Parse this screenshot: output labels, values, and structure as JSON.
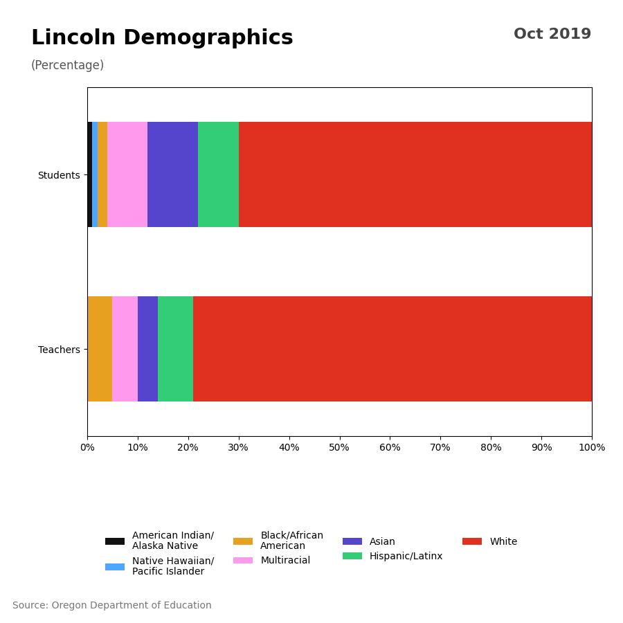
{
  "chart_data": {
    "type": "bar",
    "orientation": "horizontal",
    "stacked": true,
    "title": "Lincoln Demographics",
    "subtitle": "(Percentage)",
    "annotations": [
      "Oct 2019",
      "Source: Oregon Department of Education"
    ],
    "categories": [
      "Students",
      "Teachers"
    ],
    "series": [
      {
        "name": "American Indian/\nAlaska Native",
        "color": "#111111",
        "values": [
          1.0,
          0.0
        ]
      },
      {
        "name": "Native Hawaiian/\nPacific Islander",
        "color": "#4da6ff",
        "values": [
          1.0,
          0.0
        ]
      },
      {
        "name": "Black/African\nAmerican",
        "color": "#e8a020",
        "values": [
          2.0,
          5.0
        ]
      },
      {
        "name": "Multiracial",
        "color": "#ff99ee",
        "values": [
          8.0,
          5.0
        ]
      },
      {
        "name": "Asian",
        "color": "#5544cc",
        "values": [
          10.0,
          4.0
        ]
      },
      {
        "name": "Hispanic/Latinx",
        "color": "#33cc77",
        "values": [
          8.0,
          7.0
        ]
      },
      {
        "name": "White",
        "color": "#e03020",
        "values": [
          70.0,
          79.0
        ]
      }
    ],
    "xlim": [
      0,
      100
    ],
    "xticks": [
      {
        "value": 0,
        "label": "0%"
      },
      {
        "value": 10,
        "label": "10%"
      },
      {
        "value": 20,
        "label": "20%"
      },
      {
        "value": 30,
        "label": "30%"
      },
      {
        "value": 40,
        "label": "40%"
      },
      {
        "value": 50,
        "label": "50%"
      },
      {
        "value": 60,
        "label": "60%"
      },
      {
        "value": 70,
        "label": "70%"
      },
      {
        "value": 80,
        "label": "80%"
      },
      {
        "value": 90,
        "label": "90%"
      },
      {
        "value": 100,
        "label": "100%"
      }
    ],
    "grid": false,
    "legend": "lower center"
  }
}
